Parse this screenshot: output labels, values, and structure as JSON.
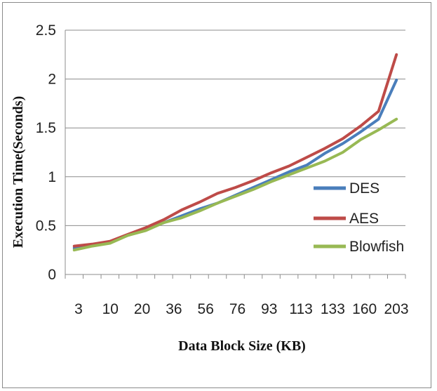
{
  "chart_data": {
    "type": "line",
    "title": "",
    "xlabel": "Data Block Size (KB)",
    "ylabel": "Execution Time(Seconds)",
    "ylim": [
      0,
      2.5
    ],
    "yticks": [
      "0",
      "0.5",
      "1",
      "1.5",
      "2",
      "2.5"
    ],
    "x_tick_labels": [
      "3",
      "10",
      "20",
      "36",
      "56",
      "76",
      "93",
      "113",
      "133",
      "160",
      "203"
    ],
    "grid": "horizontal",
    "legend_position": "right",
    "series": [
      {
        "name": "DES",
        "color": "#4a7ebb",
        "values": [
          0.27,
          0.3,
          0.33,
          0.4,
          0.46,
          0.53,
          0.6,
          0.67,
          0.73,
          0.81,
          0.89,
          0.97,
          1.05,
          1.12,
          1.24,
          1.34,
          1.46,
          1.59,
          1.99
        ]
      },
      {
        "name": "AES",
        "color": "#be4b48",
        "values": [
          0.29,
          0.31,
          0.34,
          0.41,
          0.48,
          0.56,
          0.66,
          0.74,
          0.83,
          0.89,
          0.96,
          1.04,
          1.11,
          1.2,
          1.29,
          1.39,
          1.52,
          1.67,
          2.25
        ]
      },
      {
        "name": "Blowfish",
        "color": "#98b954",
        "values": [
          0.25,
          0.29,
          0.32,
          0.4,
          0.45,
          0.53,
          0.58,
          0.65,
          0.73,
          0.8,
          0.87,
          0.95,
          1.02,
          1.09,
          1.16,
          1.25,
          1.38,
          1.48,
          1.59
        ]
      }
    ]
  }
}
